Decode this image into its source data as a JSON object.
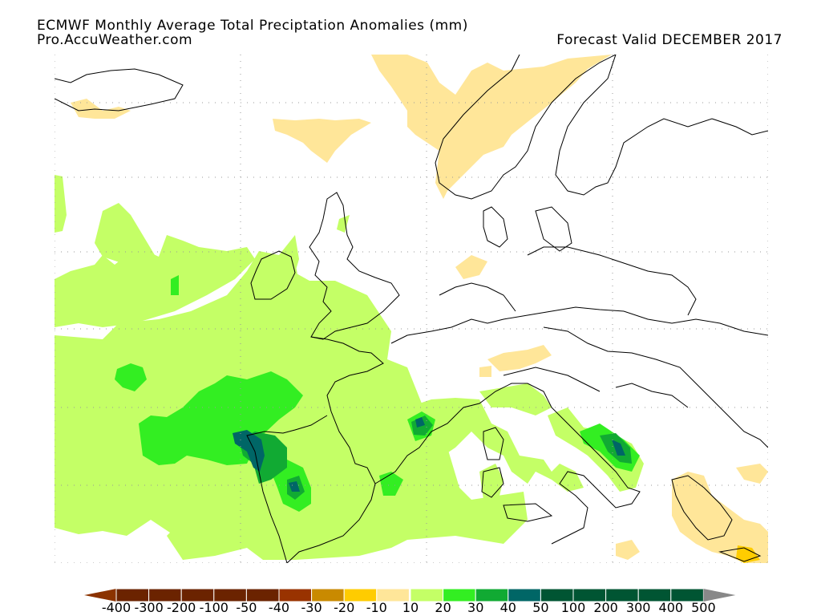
{
  "header": {
    "title": "ECMWF Monthly Average Total Preciptation Anomalies (mm)",
    "source": "Pro.AccuWeather.com",
    "valid": "Forecast Valid DECEMBER 2017"
  },
  "legend": {
    "labels": [
      "-400",
      "-300",
      "-200",
      "-100",
      "-50",
      "-40",
      "-30",
      "-20",
      "-10",
      "10",
      "20",
      "30",
      "40",
      "50",
      "100",
      "200",
      "300",
      "400",
      "500"
    ],
    "colors": {
      "dry": [
        "#6b2300",
        "#6b2300",
        "#6b2300",
        "#6b2300",
        "#6b2300",
        "#993300",
        "#c98a00",
        "#ffcc00",
        "#ffe699"
      ],
      "wet": [
        "#c4ff66",
        "#33ee22",
        "#11aa33",
        "#006666",
        "#005533",
        "#005533",
        "#005533",
        "#005533",
        "#005533"
      ],
      "below_end": "#8b3300",
      "above_end": "#888888"
    }
  },
  "map_colors": {
    "light_green": "#c4ff66",
    "green": "#33ee22",
    "mid_green": "#11aa33",
    "dark_teal": "#006666",
    "tan": "#ffe699",
    "gold": "#ffcc00",
    "gridline": "#999999"
  }
}
